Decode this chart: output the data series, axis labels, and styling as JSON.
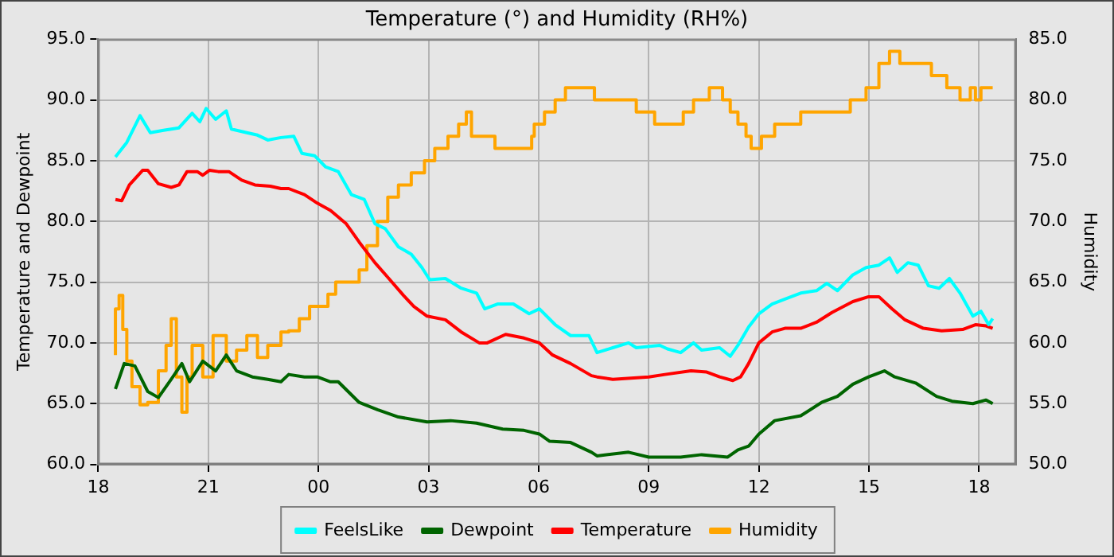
{
  "chart_data": {
    "type": "line",
    "title": "Temperature (°) and Humidity (RH%)",
    "ylabel": "Temperature and Dewpoint",
    "y2label": "Humidity",
    "xlim": [
      18,
      43
    ],
    "xticks": [
      {
        "value": 18,
        "label": "18"
      },
      {
        "value": 21,
        "label": "21"
      },
      {
        "value": 24,
        "label": "00"
      },
      {
        "value": 27,
        "label": "03"
      },
      {
        "value": 30,
        "label": "06"
      },
      {
        "value": 33,
        "label": "09"
      },
      {
        "value": 36,
        "label": "12"
      },
      {
        "value": 39,
        "label": "15"
      },
      {
        "value": 42,
        "label": "18"
      }
    ],
    "ylim": [
      60,
      95
    ],
    "yticks": [
      {
        "value": 60,
        "label": "60.0"
      },
      {
        "value": 65,
        "label": "65.0"
      },
      {
        "value": 70,
        "label": "70.0"
      },
      {
        "value": 75,
        "label": "75.0"
      },
      {
        "value": 80,
        "label": "80.0"
      },
      {
        "value": 85,
        "label": "85.0"
      },
      {
        "value": 90,
        "label": "90.0"
      },
      {
        "value": 95,
        "label": "95.0"
      }
    ],
    "y2lim": [
      50,
      85
    ],
    "y2ticks": [
      {
        "value": 50,
        "label": "50.0"
      },
      {
        "value": 55,
        "label": "55.0"
      },
      {
        "value": 60,
        "label": "60.0"
      },
      {
        "value": 65,
        "label": "65.0"
      },
      {
        "value": 70,
        "label": "70.0"
      },
      {
        "value": 75,
        "label": "75.0"
      },
      {
        "value": 80,
        "label": "80.0"
      },
      {
        "value": 85,
        "label": "85.0"
      }
    ],
    "grid": true,
    "legend": "bottom",
    "marker": "none",
    "line_style": "solid",
    "series": [
      {
        "name": "FeelsLike",
        "color": "#00ffff",
        "x": [
          18.47,
          18.78,
          19.14,
          19.42,
          19.78,
          20.2,
          20.56,
          20.77,
          20.94,
          21.2,
          21.49,
          21.63,
          22.05,
          22.34,
          22.62,
          22.98,
          23.33,
          23.55,
          23.9,
          24.19,
          24.54,
          24.9,
          25.25,
          25.54,
          25.82,
          26.18,
          26.53,
          26.82,
          27.03,
          27.46,
          27.89,
          28.31,
          28.53,
          28.88,
          29.31,
          29.74,
          30.02,
          30.45,
          30.87,
          31.37,
          31.59,
          32.02,
          32.45,
          32.66,
          33.3,
          33.51,
          33.87,
          34.22,
          34.44,
          34.93,
          35.22,
          35.43,
          35.72,
          36.0,
          36.36,
          36.71,
          37.14,
          37.57,
          37.85,
          38.14,
          38.56,
          38.92,
          39.27,
          39.56,
          39.77,
          40.06,
          40.34,
          40.62,
          40.91,
          41.19,
          41.48,
          41.83,
          42.05,
          42.26,
          42.37
        ],
        "values": [
          85.3,
          86.5,
          88.7,
          87.3,
          87.5,
          87.7,
          88.9,
          88.2,
          89.3,
          88.4,
          89.1,
          87.6,
          87.3,
          87.1,
          86.7,
          86.9,
          87.0,
          85.6,
          85.4,
          84.5,
          84.1,
          82.2,
          81.8,
          79.8,
          79.4,
          77.9,
          77.3,
          76.2,
          75.2,
          75.3,
          74.5,
          74.1,
          72.8,
          73.2,
          73.2,
          72.4,
          72.8,
          71.5,
          70.6,
          70.6,
          69.2,
          69.6,
          70.0,
          69.6,
          69.8,
          69.5,
          69.2,
          70.0,
          69.4,
          69.6,
          68.9,
          69.8,
          71.3,
          72.4,
          73.2,
          73.6,
          74.1,
          74.3,
          74.9,
          74.3,
          75.6,
          76.2,
          76.4,
          77.0,
          75.8,
          76.6,
          76.4,
          74.7,
          74.5,
          75.3,
          74.1,
          72.2,
          72.6,
          71.5,
          72.0
        ]
      },
      {
        "name": "Dewpoint",
        "color": "#006400",
        "x": [
          18.47,
          18.71,
          19.0,
          19.35,
          19.64,
          19.99,
          20.28,
          20.49,
          20.85,
          21.2,
          21.49,
          21.77,
          22.2,
          22.62,
          22.98,
          23.19,
          23.62,
          23.97,
          24.33,
          24.54,
          25.11,
          25.61,
          26.18,
          26.96,
          27.6,
          28.31,
          29.02,
          29.6,
          30.02,
          30.3,
          30.87,
          31.44,
          31.59,
          32.45,
          33.0,
          33.87,
          34.44,
          35.15,
          35.43,
          35.72,
          36.0,
          36.43,
          37.14,
          37.71,
          38.14,
          38.56,
          38.99,
          39.42,
          39.7,
          40.27,
          40.84,
          41.26,
          41.83,
          42.19,
          42.37
        ],
        "values": [
          66.2,
          68.3,
          68.1,
          66.0,
          65.5,
          67.0,
          68.3,
          66.8,
          68.5,
          67.7,
          69.0,
          67.7,
          67.2,
          67.0,
          66.8,
          67.4,
          67.2,
          67.2,
          66.8,
          66.8,
          65.1,
          64.5,
          63.9,
          63.5,
          63.6,
          63.4,
          62.9,
          62.8,
          62.5,
          61.9,
          61.8,
          61.0,
          60.7,
          61.0,
          60.6,
          60.6,
          60.8,
          60.6,
          61.2,
          61.5,
          62.5,
          63.6,
          64.0,
          65.1,
          65.6,
          66.6,
          67.2,
          67.7,
          67.2,
          66.7,
          65.6,
          65.2,
          65.0,
          65.3,
          65.0
        ]
      },
      {
        "name": "Temperature",
        "color": "#ff0000",
        "x": [
          18.47,
          18.64,
          18.85,
          19.21,
          19.35,
          19.64,
          19.99,
          20.2,
          20.42,
          20.7,
          20.85,
          21.03,
          21.27,
          21.56,
          21.91,
          22.27,
          22.69,
          22.98,
          23.19,
          23.62,
          23.97,
          24.33,
          24.76,
          25.11,
          25.54,
          25.89,
          26.32,
          26.6,
          26.96,
          27.46,
          27.89,
          28.38,
          28.6,
          29.1,
          29.6,
          30.02,
          30.38,
          30.87,
          31.44,
          31.59,
          32.02,
          33.0,
          33.44,
          34.15,
          34.58,
          34.93,
          35.29,
          35.5,
          35.72,
          36.0,
          36.36,
          36.71,
          37.14,
          37.57,
          37.99,
          38.56,
          38.99,
          39.27,
          39.63,
          39.98,
          40.48,
          40.98,
          41.55,
          41.9,
          42.19,
          42.37
        ],
        "values": [
          81.8,
          81.7,
          83.0,
          84.2,
          84.2,
          83.1,
          82.8,
          83.0,
          84.1,
          84.1,
          83.8,
          84.2,
          84.1,
          84.1,
          83.4,
          83.0,
          82.9,
          82.7,
          82.7,
          82.2,
          81.5,
          80.9,
          79.8,
          78.3,
          76.6,
          75.4,
          73.9,
          73.0,
          72.2,
          71.9,
          70.9,
          70.0,
          70.0,
          70.7,
          70.4,
          70.0,
          69.0,
          68.3,
          67.3,
          67.2,
          67.0,
          67.2,
          67.4,
          67.7,
          67.6,
          67.2,
          66.9,
          67.2,
          68.3,
          70.0,
          70.9,
          71.2,
          71.2,
          71.7,
          72.5,
          73.4,
          73.8,
          73.8,
          72.8,
          71.9,
          71.2,
          71.0,
          71.1,
          71.5,
          71.4,
          71.2
        ]
      },
      {
        "name": "Humidity",
        "type": "step",
        "axis": "y2",
        "color": "#ffa500",
        "x": [
          18.47,
          18.57,
          18.67,
          18.78,
          18.92,
          19.14,
          19.35,
          19.64,
          19.85,
          19.99,
          20.13,
          20.28,
          20.42,
          20.56,
          20.85,
          21.13,
          21.49,
          21.77,
          22.05,
          22.34,
          22.62,
          22.98,
          23.19,
          23.48,
          23.76,
          24.26,
          24.47,
          25.11,
          25.32,
          25.61,
          25.89,
          26.18,
          26.53,
          26.89,
          27.17,
          27.53,
          27.82,
          28.03,
          28.17,
          28.81,
          29.81,
          29.88,
          30.16,
          30.45,
          30.73,
          31.52,
          32.66,
          33.16,
          33.94,
          34.22,
          34.65,
          35.01,
          35.22,
          35.43,
          35.65,
          35.79,
          36.07,
          36.43,
          37.14,
          38.49,
          38.92,
          39.27,
          39.56,
          39.84,
          40.7,
          41.12,
          41.48,
          41.76,
          41.9,
          42.05,
          42.12,
          42.37
        ],
        "values": [
          59,
          62.8,
          63.9,
          61.1,
          58.5,
          56.4,
          54.9,
          55.1,
          57.7,
          59.8,
          62,
          57.2,
          54.3,
          57.2,
          59.8,
          57.2,
          60.6,
          58.5,
          59.4,
          60.6,
          58.8,
          59.8,
          60.9,
          61,
          62,
          63,
          64,
          65,
          66,
          68,
          70,
          72,
          73,
          74,
          75,
          76,
          77,
          78,
          79,
          77,
          76,
          77,
          78,
          79,
          80,
          81,
          80,
          79,
          78,
          79,
          80,
          81,
          80,
          79,
          78,
          77,
          76,
          77,
          78,
          79,
          80,
          81,
          83,
          84,
          83,
          82,
          81,
          80,
          81,
          80,
          81,
          81
        ]
      }
    ]
  }
}
